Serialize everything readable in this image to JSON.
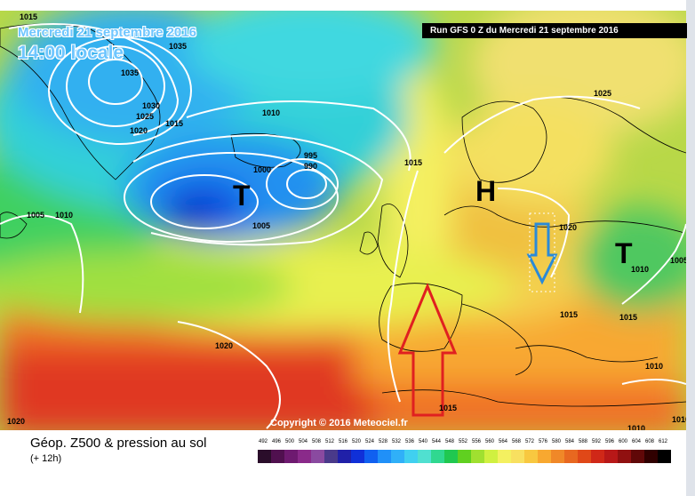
{
  "header": {
    "date_overlay": "Mercredi 21 septembre 2016",
    "time_overlay": "14:00 locale",
    "run_label": "Run GFS 0 Z du Mercredi 21 septembre 2016"
  },
  "map": {
    "copyright": "Copyright © 2016 Meteociel.fr",
    "isobar_labels": [
      "1015",
      "1035",
      "1035",
      "1030",
      "1025",
      "1020",
      "1015",
      "1010",
      "995",
      "990",
      "1000",
      "1005",
      "1015",
      "1005",
      "1010",
      "1025",
      "1020",
      "1010",
      "1005",
      "1015",
      "1015",
      "1020",
      "1015",
      "1020",
      "1010",
      "1010",
      "1010"
    ],
    "pressure_centers": [
      "T",
      "H",
      "T"
    ],
    "arrows": [
      {
        "name": "red-arrow",
        "direction": "north",
        "color": "#e02020"
      },
      {
        "name": "blue-arrow",
        "direction": "south",
        "color": "#2a8ad8"
      }
    ]
  },
  "legend": {
    "title": "Géop. Z500 & pression au sol",
    "subtitle": "(+ 12h)",
    "scale_values": [
      "492",
      "496",
      "500",
      "504",
      "508",
      "512",
      "516",
      "520",
      "524",
      "528",
      "532",
      "536",
      "540",
      "544",
      "548",
      "552",
      "556",
      "560",
      "564",
      "568",
      "572",
      "576",
      "580",
      "584",
      "588",
      "592",
      "596",
      "600",
      "604",
      "608",
      "612"
    ],
    "scale_colors": [
      "#2a0d2a",
      "#50104f",
      "#6e1a70",
      "#8a2a8a",
      "#8a4aa0",
      "#4a3a8a",
      "#2020a8",
      "#1030d8",
      "#1060f0",
      "#2090f8",
      "#30b0f8",
      "#40d0f0",
      "#50e0d0",
      "#30d890",
      "#20c850",
      "#60d020",
      "#a0e030",
      "#d0f040",
      "#f4f060",
      "#f8e060",
      "#f8c840",
      "#f8a830",
      "#f08828",
      "#e86820",
      "#e04818",
      "#d02818",
      "#b81818",
      "#901010",
      "#600808",
      "#300000",
      "#000000"
    ]
  }
}
